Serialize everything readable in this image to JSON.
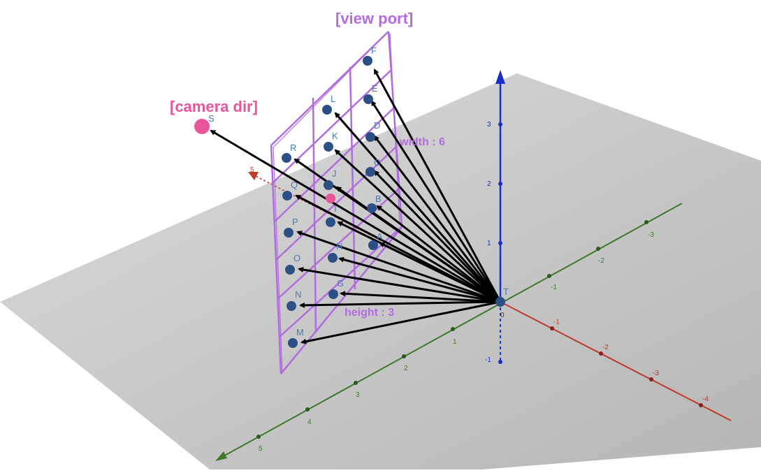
{
  "annotations": {
    "viewport": "[view port]",
    "camera_dir": "[camera dir]",
    "width": "width : 6",
    "height": "height : 3"
  },
  "camera_point_label": "S",
  "origin_label": "T",
  "origin_value": "0",
  "viewport_points": [
    "A",
    "B",
    "C",
    "D",
    "E",
    "F",
    "G",
    "H",
    "I",
    "J",
    "K",
    "L",
    "M",
    "N",
    "O",
    "P",
    "Q",
    "R"
  ],
  "axes": {
    "x_ticks": [
      "-1",
      "-2",
      "-3",
      "-4"
    ],
    "y_ticks": [
      "5",
      "4",
      "3",
      "2",
      "1",
      "-1",
      "-2",
      "-3"
    ],
    "z_ticks": [
      "3",
      "2",
      "1",
      "-1"
    ],
    "x_end_label": "5"
  },
  "colors": {
    "viewport": "#b36be0",
    "camera": "#e8569a",
    "point": "#2c4f86",
    "x_axis": "#c0392b",
    "y_axis": "#3d7a2a",
    "z_axis": "#1a2ecc",
    "plane": "#bdbdbd"
  }
}
